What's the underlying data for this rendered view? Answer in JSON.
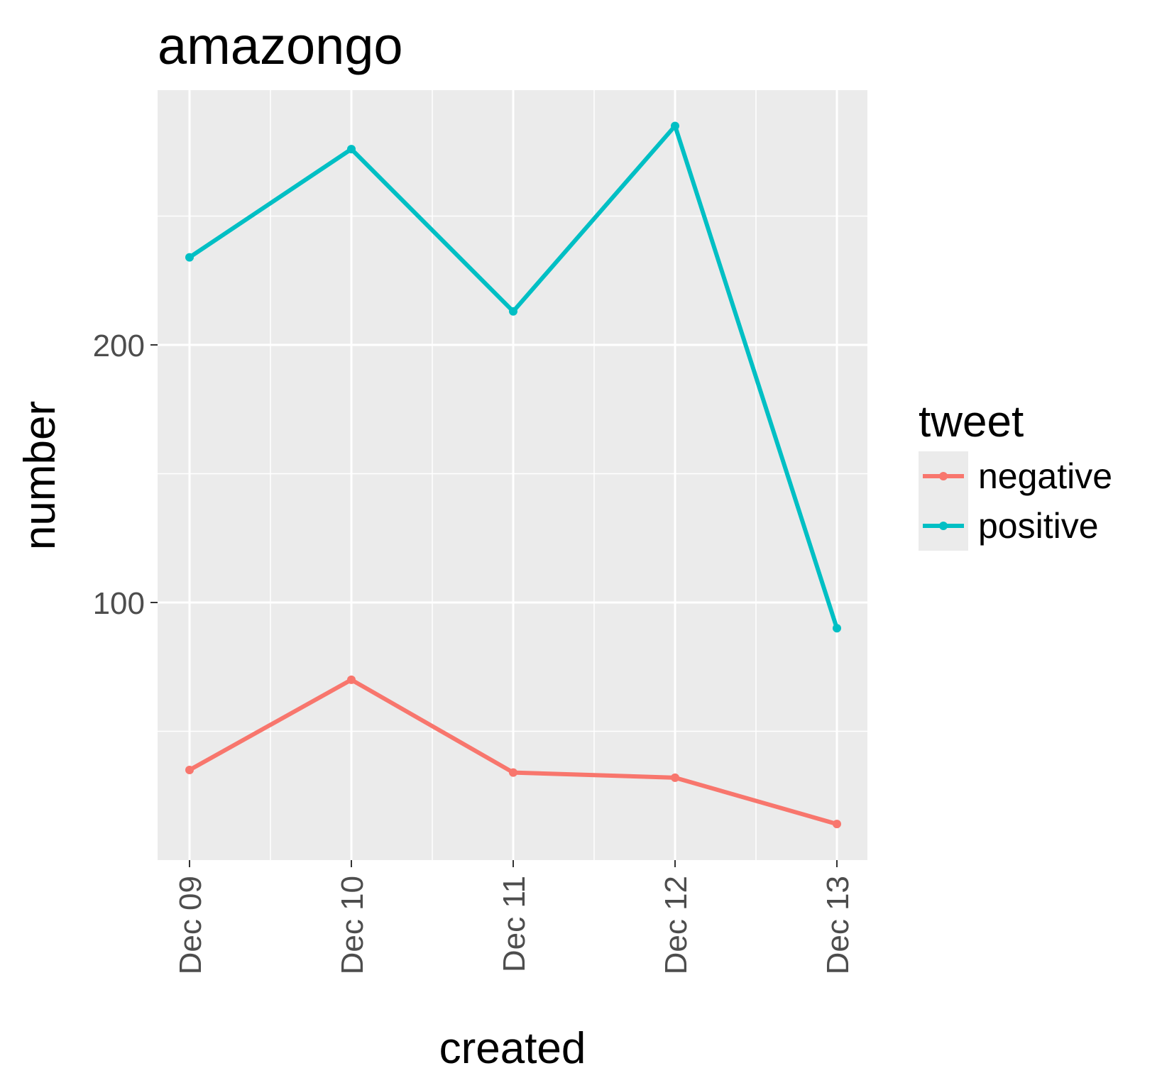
{
  "chart_data": {
    "type": "line",
    "title": "amazongo",
    "xlabel": "created",
    "ylabel": "number",
    "categories": [
      "Dec 09",
      "Dec 10",
      "Dec 11",
      "Dec 12",
      "Dec 13"
    ],
    "y_ticks": [
      "100",
      "200"
    ],
    "y_tick_values": [
      100,
      200
    ],
    "ylim": [
      0,
      300
    ],
    "grid": true,
    "legend": {
      "title": "tweet",
      "position": "right"
    },
    "series": [
      {
        "name": "negative",
        "color": "#F8766D",
        "values": [
          35,
          70,
          34,
          32,
          14
        ]
      },
      {
        "name": "positive",
        "color": "#00BFC4",
        "values": [
          234,
          276,
          213,
          285,
          90
        ]
      }
    ]
  }
}
